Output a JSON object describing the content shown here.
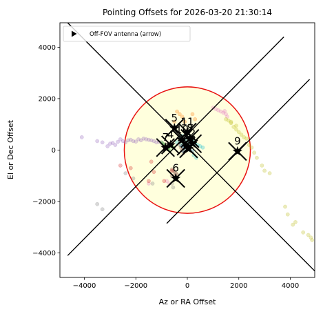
{
  "chart_data": {
    "type": "scatter",
    "title": "Pointing Offsets for 2026-03-20 21:30:14",
    "xlabel": "Az or RA Offset",
    "ylabel": "El or Dec Offset",
    "xlim": [
      -4950,
      4950
    ],
    "ylim": [
      -4950,
      4950
    ],
    "x_ticks": [
      -4000,
      -2000,
      0,
      2000,
      4000
    ],
    "y_ticks": [
      -4000,
      -2000,
      0,
      2000,
      4000
    ],
    "x_tick_labels": [
      "−4000",
      "−2000",
      "0",
      "2000",
      "4000"
    ],
    "y_tick_labels": [
      "−4000",
      "−2000",
      "0",
      "2000",
      "4000"
    ],
    "legend": {
      "placement": "top-left",
      "entries": [
        {
          "label": "Off-FOV antenna (arrow)",
          "marker": "triangle-right"
        }
      ]
    },
    "fov_circle": {
      "center": [
        0,
        0
      ],
      "radius": 2450,
      "edge_color": "#e8100f",
      "fill_color": "#ffffdd"
    },
    "diagonal_lines": [
      {
        "x": [
          -4650,
          3750
        ],
        "y": [
          -4100,
          4400
        ]
      },
      {
        "x": [
          -4650,
          4950
        ],
        "y": [
          4950,
          -4700
        ]
      },
      {
        "x": [
          -800,
          4750
        ],
        "y": [
          -2850,
          2750
        ]
      }
    ],
    "scatter_series": [
      {
        "color": "#9467bd",
        "points": [
          [
            -4100,
            500
          ],
          [
            -3500,
            350
          ],
          [
            -3300,
            300
          ],
          [
            -3000,
            250
          ],
          [
            -2900,
            280
          ],
          [
            -2700,
            320
          ],
          [
            -2500,
            350
          ],
          [
            -2400,
            300
          ],
          [
            -2300,
            380
          ],
          [
            -2200,
            400
          ],
          [
            -2100,
            350
          ],
          [
            -2000,
            330
          ],
          [
            -1900,
            420
          ],
          [
            -1800,
            380
          ],
          [
            -1700,
            450
          ],
          [
            -1600,
            420
          ],
          [
            -1500,
            400
          ],
          [
            -1400,
            380
          ],
          [
            -1300,
            350
          ],
          [
            -1200,
            300
          ],
          [
            -1100,
            320
          ],
          [
            -1000,
            280
          ],
          [
            -2800,
            200
          ],
          [
            -3100,
            150
          ],
          [
            -2600,
            420
          ]
        ]
      },
      {
        "color": "#2ca02c",
        "points": [
          [
            -1000,
            300
          ],
          [
            -950,
            250
          ],
          [
            -900,
            200
          ],
          [
            -850,
            150
          ],
          [
            -800,
            100
          ],
          [
            -750,
            50
          ],
          [
            -700,
            0
          ],
          [
            -650,
            200
          ],
          [
            -600,
            150
          ],
          [
            -550,
            100
          ]
        ]
      },
      {
        "color": "#e377c2",
        "points": [
          [
            1000,
            1650
          ],
          [
            1100,
            1600
          ],
          [
            1200,
            1550
          ],
          [
            1300,
            1500
          ],
          [
            1400,
            1450
          ],
          [
            1500,
            1400
          ],
          [
            1450,
            1520
          ],
          [
            1550,
            1300
          ],
          [
            -1500,
            -1300
          ],
          [
            -800,
            -1200
          ],
          [
            -700,
            -1300
          ]
        ]
      },
      {
        "color": "#bcbd22",
        "points": [
          [
            1500,
            1200
          ],
          [
            1600,
            1150
          ],
          [
            1700,
            1100
          ],
          [
            1800,
            900
          ],
          [
            1900,
            800
          ],
          [
            2000,
            700
          ],
          [
            2100,
            600
          ],
          [
            2200,
            500
          ],
          [
            2300,
            450
          ],
          [
            1700,
            1050
          ],
          [
            1900,
            950
          ],
          [
            2400,
            200
          ],
          [
            2500,
            100
          ],
          [
            2600,
            -100
          ],
          [
            2700,
            -300
          ],
          [
            2900,
            -600
          ],
          [
            3000,
            -800
          ],
          [
            3200,
            -900
          ],
          [
            3800,
            -2200
          ],
          [
            3900,
            -2500
          ],
          [
            4200,
            -2800
          ],
          [
            4500,
            -3200
          ],
          [
            4700,
            -3300
          ],
          [
            4800,
            -3400
          ],
          [
            4850,
            -3500
          ],
          [
            4100,
            -2900
          ]
        ]
      },
      {
        "color": "#17becf",
        "points": [
          [
            -300,
            500
          ],
          [
            -200,
            550
          ],
          [
            -100,
            400
          ],
          [
            0,
            300
          ],
          [
            100,
            500
          ],
          [
            200,
            350
          ],
          [
            300,
            250
          ],
          [
            400,
            200
          ],
          [
            500,
            150
          ],
          [
            600,
            100
          ],
          [
            -400,
            300
          ],
          [
            -250,
            200
          ],
          [
            150,
            200
          ],
          [
            250,
            -200
          ],
          [
            350,
            -300
          ]
        ]
      },
      {
        "color": "#8c564b",
        "points": [
          [
            -300,
            200
          ],
          [
            -250,
            100
          ],
          [
            -200,
            0
          ],
          [
            -150,
            -100
          ],
          [
            -600,
            -750
          ],
          [
            -550,
            -800
          ],
          [
            -500,
            -850
          ],
          [
            -450,
            -900
          ],
          [
            -400,
            -950
          ],
          [
            -500,
            -1000
          ],
          [
            -450,
            -1100
          ],
          [
            -600,
            -1000
          ]
        ]
      },
      {
        "color": "#d62728",
        "points": [
          [
            -1400,
            -450
          ],
          [
            -1500,
            -1200
          ],
          [
            -1300,
            -850
          ],
          [
            -900,
            -1200
          ],
          [
            -600,
            -800
          ],
          [
            -2600,
            -600
          ],
          [
            -2200,
            -700
          ]
        ]
      },
      {
        "color": "#7f7f7f",
        "points": [
          [
            -3300,
            -2300
          ],
          [
            -3500,
            -2100
          ],
          [
            -2400,
            -900
          ],
          [
            -2100,
            -1100
          ],
          [
            -600,
            -1300
          ],
          [
            -550,
            -1450
          ],
          [
            -1350,
            -1300
          ]
        ]
      },
      {
        "color": "#ff7f0e",
        "points": [
          [
            -400,
            1500
          ],
          [
            -300,
            1400
          ],
          [
            -200,
            1300
          ],
          [
            200,
            1400
          ],
          [
            300,
            1200
          ],
          [
            -500,
            1100
          ],
          [
            -100,
            1100
          ]
        ]
      },
      {
        "color": "#1f77b4",
        "points": [
          [
            -200,
            150
          ],
          [
            -100,
            100
          ],
          [
            0,
            50
          ],
          [
            100,
            0
          ],
          [
            200,
            -50
          ],
          [
            -150,
            -50
          ]
        ]
      }
    ],
    "antennas": [
      {
        "label": "5",
        "x": -500,
        "y": 850
      },
      {
        "label": "11",
        "x": 0,
        "y": 700
      },
      {
        "label": "10",
        "x": -200,
        "y": 400
      },
      {
        "label": "8",
        "x": 100,
        "y": 450
      },
      {
        "label": "2",
        "x": 200,
        "y": 250
      },
      {
        "label": "7",
        "x": -850,
        "y": 100
      },
      {
        "label": "4",
        "x": -650,
        "y": 200
      },
      {
        "label": "3",
        "x": 50,
        "y": 50
      },
      {
        "label": "1",
        "x": -50,
        "y": 150
      },
      {
        "label": "9",
        "x": 1950,
        "y": -50
      },
      {
        "label": "6",
        "x": -450,
        "y": -1100
      }
    ]
  }
}
